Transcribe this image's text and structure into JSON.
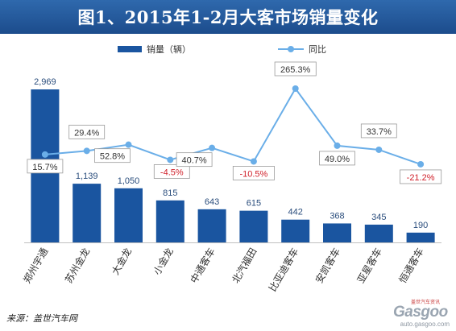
{
  "header": {
    "title": "图1、2015年1-2月大客市场销量变化"
  },
  "footer": {
    "source": "来源：盖世汽车网",
    "watermark_brand": "Gasgoo",
    "watermark_sub": "盖世汽车资讯",
    "watermark_url": "auto.gasgoo.com"
  },
  "colors": {
    "title_bg": "#24599c",
    "bar": "#1a55a0",
    "line": "#6aaee8",
    "positive_label": "#333333",
    "negative_label": "#d0202a",
    "bar_value_text": "#2a4d7c"
  },
  "chart_data": {
    "type": "bar",
    "categories": [
      "郑州宇通",
      "苏州金龙",
      "大金龙",
      "小金龙",
      "中通客车",
      "北汽福田",
      "比亚迪客车",
      "安凯客车",
      "亚星客车",
      "恒通客车"
    ],
    "series": [
      {
        "name": "销量（辆）",
        "kind": "bar",
        "values": [
          2969,
          1139,
          1050,
          815,
          643,
          615,
          442,
          368,
          345,
          190
        ],
        "labels": [
          "2,969",
          "1,139",
          "1,050",
          "815",
          "643",
          "615",
          "442",
          "368",
          "345",
          "190"
        ]
      },
      {
        "name": "同比",
        "kind": "line",
        "values": [
          15.7,
          29.4,
          52.8,
          -4.5,
          40.7,
          -10.5,
          265.3,
          49.0,
          33.7,
          -21.2
        ],
        "labels": [
          "15.7%",
          "29.4%",
          "52.8%",
          "-4.5%",
          "40.7%",
          "-10.5%",
          "265.3%",
          "49.0%",
          "33.7%",
          "-21.2%"
        ]
      }
    ],
    "legend_position": "top",
    "grid": false
  }
}
